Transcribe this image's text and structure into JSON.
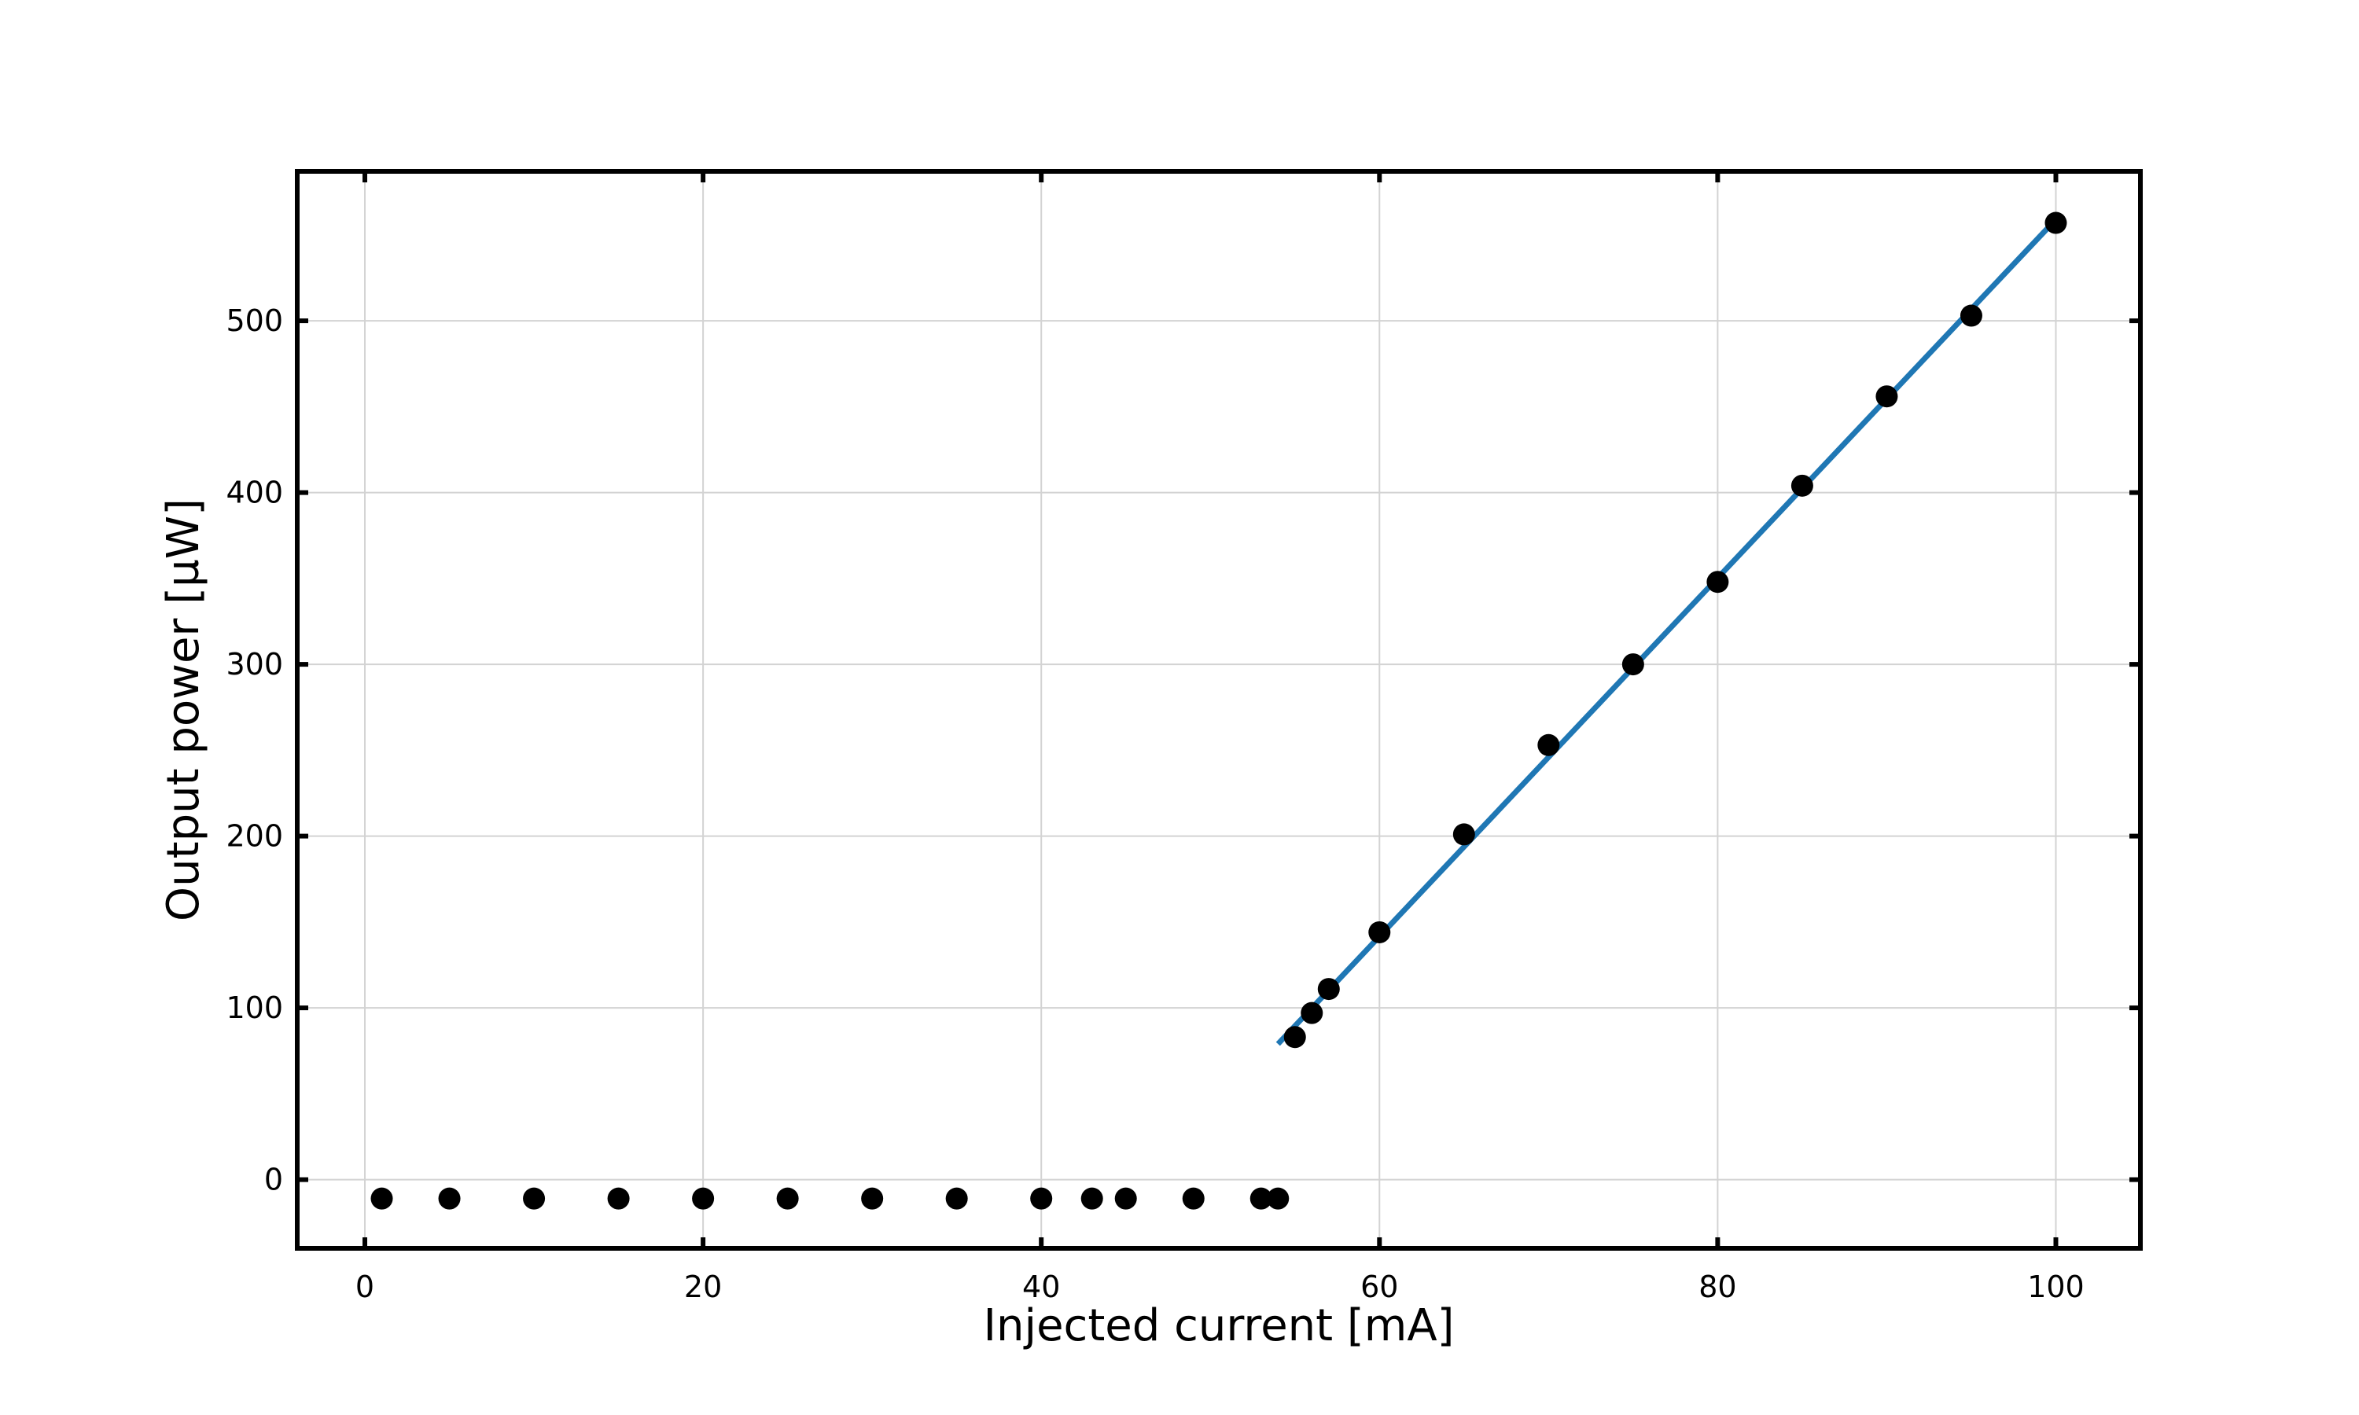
{
  "chart_data": {
    "type": "scatter",
    "title": "",
    "xlabel": "Injected current [mA]",
    "ylabel": "Output power [µW]",
    "xlim": [
      -4,
      105
    ],
    "ylim": [
      -40,
      587
    ],
    "xticks": [
      0,
      20,
      40,
      60,
      80,
      100
    ],
    "yticks": [
      0,
      100,
      200,
      300,
      400,
      500
    ],
    "grid": true,
    "colors": {
      "points": "#000000",
      "fit": "#1f77b4",
      "grid": "#d3d3d3",
      "frame": "#000000"
    },
    "series": [
      {
        "kind": "points",
        "x": [
          1,
          5,
          10,
          15,
          20,
          25,
          30,
          35,
          40,
          43,
          45,
          49,
          53,
          54,
          55,
          56,
          57,
          60,
          65,
          70,
          75,
          80,
          85,
          90,
          95,
          100
        ],
        "y": [
          -11,
          -11,
          -11,
          -11,
          -11,
          -11,
          -11,
          -11,
          -11,
          -11,
          -11,
          -11,
          -11,
          -11,
          83,
          97,
          111,
          144,
          201,
          253,
          300,
          348,
          404,
          456,
          503,
          557
        ]
      },
      {
        "kind": "fit-line",
        "x": [
          54,
          100
        ],
        "y": [
          79,
          559
        ]
      }
    ]
  }
}
